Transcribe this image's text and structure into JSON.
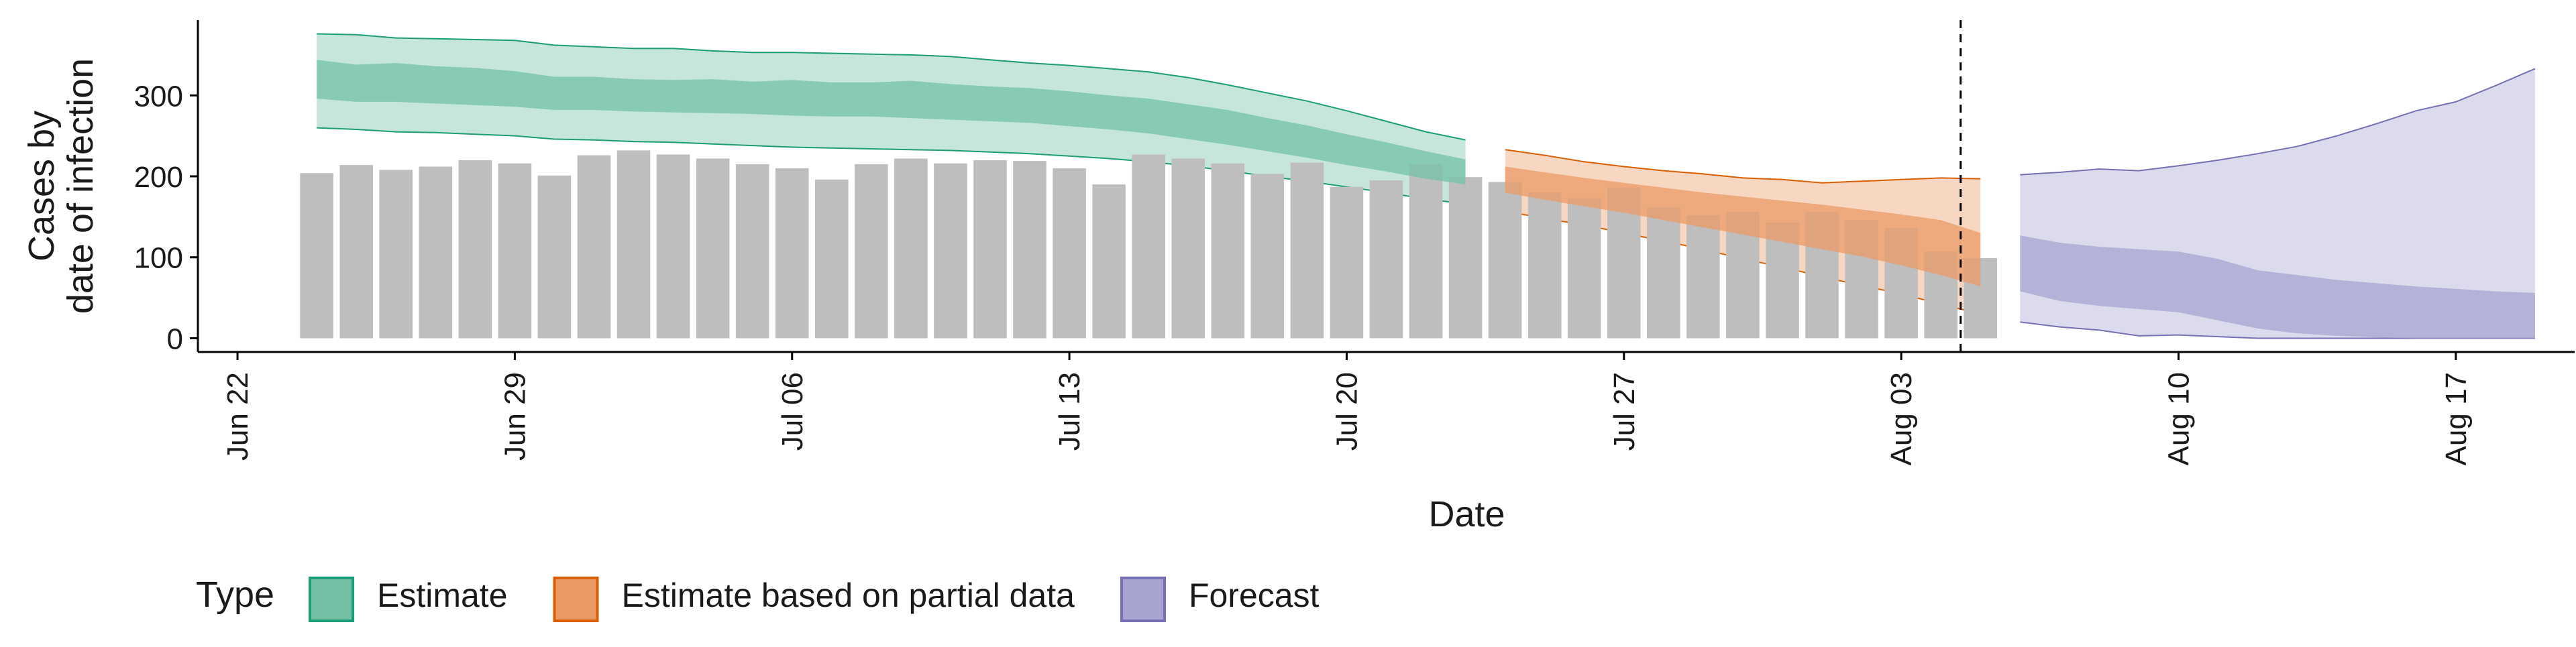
{
  "chart_data": {
    "type": "bar",
    "title": "",
    "xlabel": "Date",
    "ylabel": [
      "Cases by",
      "date of infection"
    ],
    "x_axis": {
      "type": "date",
      "ticks": [
        "Jun 22",
        "Jun 29",
        "Jul 06",
        "Jul 13",
        "Jul 20",
        "Jul 27",
        "Aug 03",
        "Aug 10",
        "Aug 17"
      ]
    },
    "y_axis": {
      "ticks": [
        0,
        100,
        200,
        300
      ],
      "ylim": [
        -17,
        393
      ]
    },
    "xlim": [
      "2020-06-21",
      "2020-08-20"
    ],
    "grid": false,
    "legend": {
      "position": "bottom-left",
      "title": "Type",
      "entries": [
        {
          "label": "Estimate",
          "fill": "#72c1a4",
          "stroke": "#1b9e77"
        },
        {
          "label": "Estimate based on partial data",
          "fill": "#eb9a64",
          "stroke": "#d95f02"
        },
        {
          "label": "Forecast",
          "fill": "#a8a4d2",
          "stroke": "#7570b3"
        }
      ]
    },
    "report_date_marker": {
      "date": "2020-08-05",
      "style": "dashed"
    },
    "observed_cases": {
      "color": "#bebebe",
      "dates": [
        "2020-06-24",
        "2020-06-25",
        "2020-06-26",
        "2020-06-27",
        "2020-06-28",
        "2020-06-29",
        "2020-06-30",
        "2020-07-01",
        "2020-07-02",
        "2020-07-03",
        "2020-07-04",
        "2020-07-05",
        "2020-07-06",
        "2020-07-07",
        "2020-07-08",
        "2020-07-09",
        "2020-07-10",
        "2020-07-11",
        "2020-07-12",
        "2020-07-13",
        "2020-07-14",
        "2020-07-15",
        "2020-07-16",
        "2020-07-17",
        "2020-07-18",
        "2020-07-19",
        "2020-07-20",
        "2020-07-21",
        "2020-07-22",
        "2020-07-23",
        "2020-07-24",
        "2020-07-25",
        "2020-07-26",
        "2020-07-27",
        "2020-07-28",
        "2020-07-29",
        "2020-07-30",
        "2020-07-31",
        "2020-08-01",
        "2020-08-02",
        "2020-08-03",
        "2020-08-04",
        "2020-08-05"
      ],
      "values": [
        204,
        214,
        208,
        212,
        220,
        216,
        201,
        226,
        232,
        227,
        222,
        215,
        210,
        196,
        215,
        222,
        216,
        220,
        219,
        210,
        190,
        227,
        222,
        216,
        203,
        217,
        187,
        195,
        215,
        199,
        193,
        180,
        173,
        186,
        162,
        152,
        156,
        143,
        156,
        146,
        136,
        107,
        99
      ]
    },
    "series": [
      {
        "name": "Estimate",
        "fill": "#72c1a4",
        "stroke": "#1b9e77",
        "dates": [
          "2020-06-24",
          "2020-06-25",
          "2020-06-26",
          "2020-06-27",
          "2020-06-28",
          "2020-06-29",
          "2020-06-30",
          "2020-07-01",
          "2020-07-02",
          "2020-07-03",
          "2020-07-04",
          "2020-07-05",
          "2020-07-06",
          "2020-07-07",
          "2020-07-08",
          "2020-07-09",
          "2020-07-10",
          "2020-07-11",
          "2020-07-12",
          "2020-07-13",
          "2020-07-14",
          "2020-07-15",
          "2020-07-16",
          "2020-07-17",
          "2020-07-18",
          "2020-07-19",
          "2020-07-20",
          "2020-07-21",
          "2020-07-22",
          "2020-07-23"
        ],
        "lower90": [
          260,
          258,
          255,
          254,
          252,
          250,
          246,
          245,
          243,
          242,
          240,
          238,
          236,
          235,
          234,
          233,
          232,
          230,
          228,
          225,
          222,
          218,
          213,
          207,
          200,
          194,
          187,
          180,
          172,
          166
        ],
        "lower50": [
          296,
          292,
          292,
          290,
          288,
          286,
          282,
          282,
          280,
          279,
          278,
          277,
          275,
          274,
          274,
          272,
          270,
          268,
          266,
          262,
          258,
          253,
          246,
          239,
          231,
          223,
          214,
          206,
          197,
          190
        ],
        "upper50": [
          344,
          338,
          340,
          336,
          334,
          330,
          323,
          323,
          320,
          319,
          320,
          317,
          319,
          316,
          316,
          318,
          314,
          311,
          309,
          305,
          300,
          296,
          289,
          282,
          272,
          263,
          252,
          242,
          231,
          221
        ],
        "upper90": [
          376,
          375,
          371,
          370,
          369,
          368,
          362,
          360,
          358,
          358,
          355,
          353,
          353,
          352,
          351,
          350,
          348,
          344,
          340,
          337,
          333,
          329,
          322,
          313,
          303,
          293,
          281,
          268,
          255,
          245
        ]
      },
      {
        "name": "Estimate based on partial data",
        "fill": "#eb9a64",
        "stroke": "#d95f02",
        "dates": [
          "2020-07-24",
          "2020-07-25",
          "2020-07-26",
          "2020-07-27",
          "2020-07-28",
          "2020-07-29",
          "2020-07-30",
          "2020-07-31",
          "2020-08-01",
          "2020-08-02",
          "2020-08-03",
          "2020-08-04",
          "2020-08-05"
        ],
        "lower90": [
          157,
          148,
          140,
          130,
          120,
          110,
          98,
          88,
          76,
          65,
          55,
          42,
          30
        ],
        "lower50": [
          180,
          171,
          163,
          155,
          146,
          137,
          128,
          119,
          110,
          101,
          90,
          78,
          64
        ],
        "upper50": [
          212,
          205,
          198,
          192,
          186,
          180,
          175,
          170,
          165,
          159,
          153,
          146,
          130
        ],
        "upper90": [
          233,
          226,
          218,
          212,
          207,
          203,
          198,
          196,
          192,
          194,
          196,
          198,
          197
        ]
      },
      {
        "name": "Forecast",
        "fill": "#a8a4d2",
        "stroke": "#7570b3",
        "dates": [
          "2020-08-06",
          "2020-08-07",
          "2020-08-08",
          "2020-08-09",
          "2020-08-10",
          "2020-08-11",
          "2020-08-12",
          "2020-08-13",
          "2020-08-14",
          "2020-08-15",
          "2020-08-16",
          "2020-08-17",
          "2020-08-18",
          "2020-08-19"
        ],
        "lower90": [
          20,
          14,
          10,
          3,
          4,
          2,
          0,
          0,
          0,
          0,
          0,
          0,
          0,
          0
        ],
        "lower50": [
          58,
          46,
          40,
          36,
          32,
          22,
          12,
          6,
          3,
          1,
          0,
          0,
          0,
          0
        ],
        "upper50": [
          127,
          118,
          113,
          110,
          107,
          98,
          84,
          78,
          72,
          68,
          64,
          61,
          58,
          56
        ],
        "upper90": [
          202,
          205,
          209,
          207,
          213,
          220,
          228,
          237,
          250,
          265,
          281,
          292,
          312,
          333
        ]
      }
    ]
  }
}
